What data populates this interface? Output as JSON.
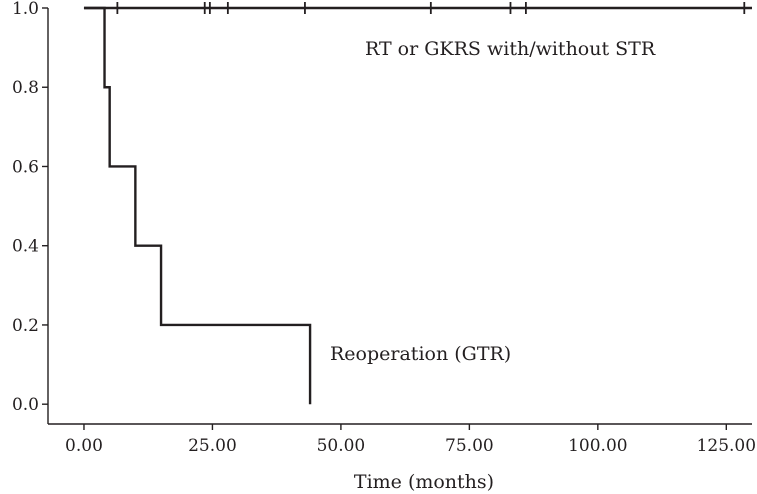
{
  "chart_data": {
    "type": "line",
    "title": "",
    "xlabel": "Time (months)",
    "ylabel": "",
    "xlim": [
      -7,
      130
    ],
    "ylim": [
      -0.05,
      1.0
    ],
    "x_ticks": [
      0,
      25,
      50,
      75,
      100,
      125
    ],
    "x_tick_labels": [
      "0.00",
      "25.00",
      "50.00",
      "75.00",
      "100.00",
      "125.00"
    ],
    "y_ticks": [
      0,
      0.2,
      0.4,
      0.6,
      0.8,
      1.0
    ],
    "y_tick_labels": [
      "0.0",
      "0.2",
      "0.4",
      "0.6",
      "0.8",
      "1.0"
    ],
    "grid": false,
    "series": [
      {
        "name": "RT or GKRS with/without STR",
        "x": [
          0,
          130
        ],
        "y": [
          1.0,
          1.0
        ],
        "censored_x": [
          6.5,
          23.5,
          24.5,
          28.0,
          43.0,
          67.5,
          83.0,
          86.0,
          128.5
        ]
      },
      {
        "name": "Reoperation (GTR)",
        "x": [
          0,
          4,
          5,
          10,
          15,
          44
        ],
        "y": [
          1.0,
          0.8,
          0.6,
          0.4,
          0.2,
          0.0
        ]
      }
    ]
  }
}
